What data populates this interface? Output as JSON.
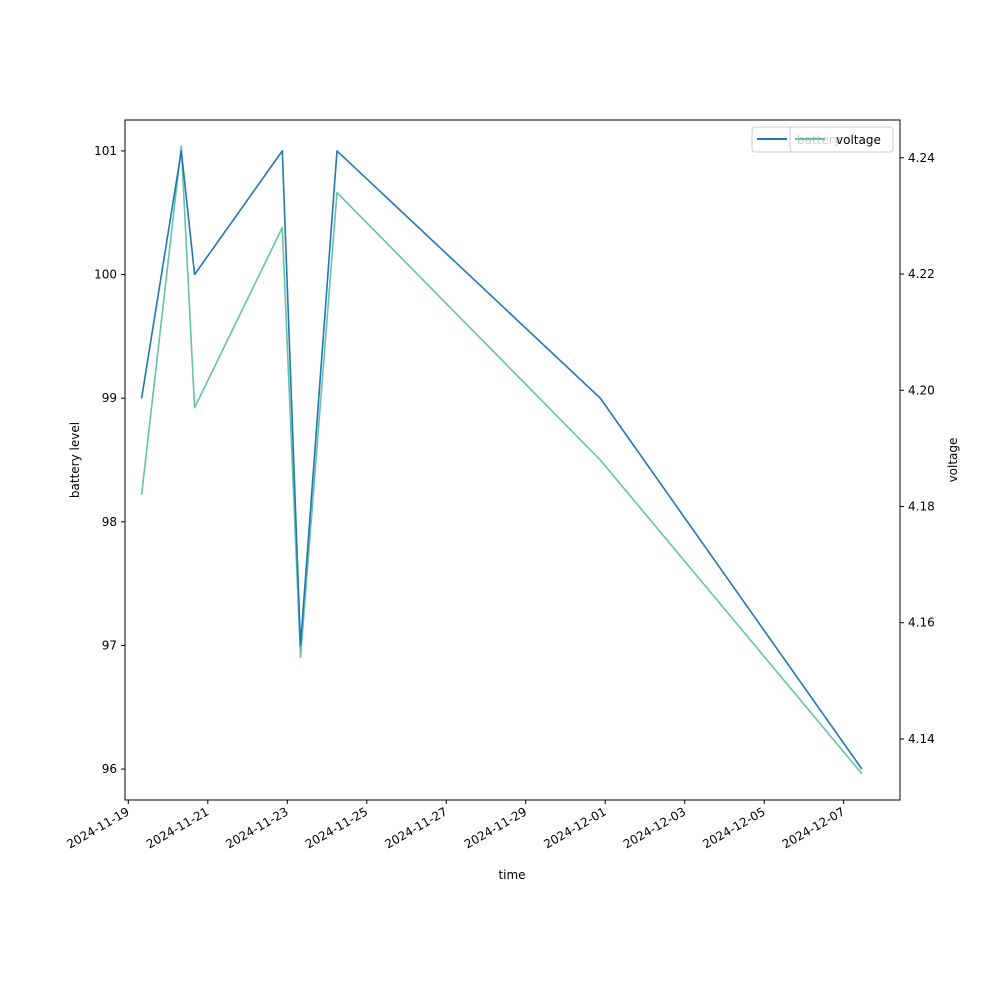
{
  "chart_data": {
    "type": "line",
    "xlabel": "time",
    "ylabel_left": "battery level",
    "ylabel_right": "voltage",
    "x_ticks": [
      "2024-11-19",
      "2024-11-21",
      "2024-11-23",
      "2024-11-25",
      "2024-11-27",
      "2024-11-29",
      "2024-12-01",
      "2024-12-03",
      "2024-12-05",
      "2024-12-07"
    ],
    "left_ticks": [
      "96",
      "97",
      "98",
      "99",
      "100",
      "101"
    ],
    "right_ticks": [
      "4.14",
      "4.16",
      "4.18",
      "4.20",
      "4.22",
      "4.24"
    ],
    "x_range": [
      "2024-11-18T22:00",
      "2024-12-08T10:00"
    ],
    "ylim_left": [
      95.75,
      101.25
    ],
    "ylim_right": [
      4.1295,
      4.2465
    ],
    "grid": false,
    "legend_placement": "top-right",
    "series": [
      {
        "name": "battery",
        "axis": "left",
        "color": "#1f77b4",
        "x": [
          "2024-11-19T08:00",
          "2024-11-20T08:00",
          "2024-11-20T16:00",
          "2024-11-22T21:00",
          "2024-11-23T08:00",
          "2024-11-24T06:00",
          "2024-11-30T21:00",
          "2024-12-07T11:00"
        ],
        "values": [
          99,
          101,
          100,
          101,
          97,
          101,
          99,
          96
        ]
      },
      {
        "name": "voltage",
        "axis": "right",
        "color": "#66c2a5",
        "x": [
          "2024-11-19T08:00",
          "2024-11-20T08:00",
          "2024-11-20T16:00",
          "2024-11-22T21:00",
          "2024-11-23T08:00",
          "2024-11-24T06:00",
          "2024-11-30T21:00",
          "2024-12-07T11:00"
        ],
        "values": [
          4.182,
          4.242,
          4.197,
          4.228,
          4.154,
          4.234,
          4.188,
          4.134
        ]
      }
    ]
  }
}
